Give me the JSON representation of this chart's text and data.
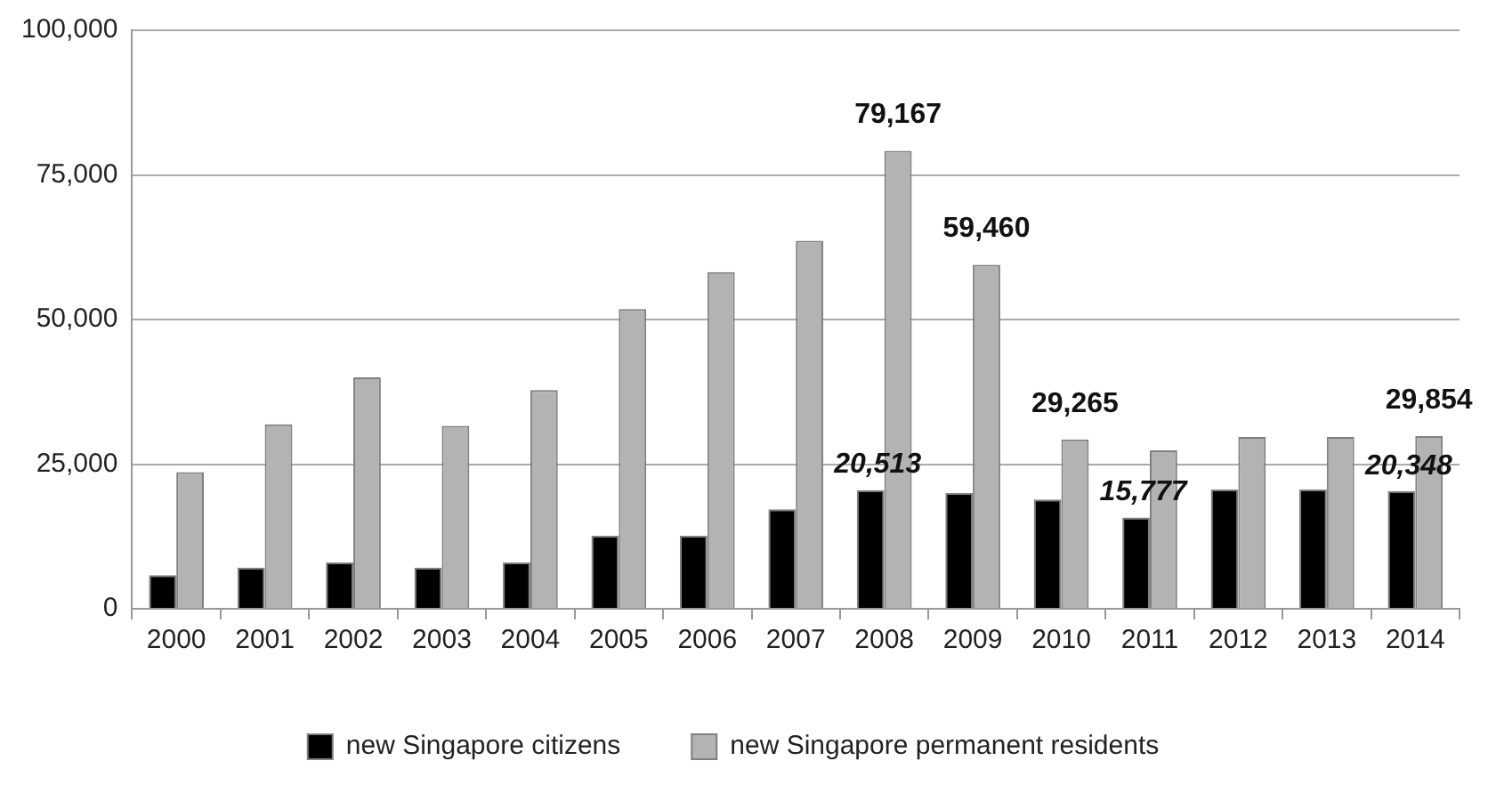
{
  "chart_data": {
    "type": "bar",
    "categories": [
      "2000",
      "2001",
      "2002",
      "2003",
      "2004",
      "2005",
      "2006",
      "2007",
      "2008",
      "2009",
      "2010",
      "2011",
      "2012",
      "2013",
      "2014"
    ],
    "series": [
      {
        "name": "new Singapore citizens",
        "color": "#000000",
        "values": [
          5800,
          7100,
          8000,
          7100,
          8000,
          12600,
          12600,
          17200,
          20513,
          20000,
          18900,
          15777,
          20600,
          20600,
          20348
        ],
        "value_labels": [
          null,
          null,
          null,
          null,
          null,
          null,
          null,
          null,
          "20,513",
          null,
          null,
          "15,777",
          null,
          null,
          "20,348"
        ]
      },
      {
        "name": "new Singapore permanent residents",
        "color": "#b3b3b3",
        "values": [
          23600,
          31900,
          40000,
          31600,
          37800,
          51800,
          58200,
          63600,
          79167,
          59460,
          29265,
          27400,
          29700,
          29700,
          29854
        ],
        "value_labels": [
          null,
          null,
          null,
          null,
          null,
          null,
          null,
          null,
          "79,167",
          "59,460",
          "29,265",
          null,
          null,
          null,
          "29,854"
        ]
      }
    ],
    "ylim": [
      0,
      100000
    ],
    "yticks": [
      {
        "value": 0,
        "label": "0"
      },
      {
        "value": 25000,
        "label": "25,000"
      },
      {
        "value": 50000,
        "label": "50,000"
      },
      {
        "value": 75000,
        "label": "75,000"
      },
      {
        "value": 100000,
        "label": "100,000"
      }
    ],
    "grid": "y",
    "legend": "bottom"
  }
}
